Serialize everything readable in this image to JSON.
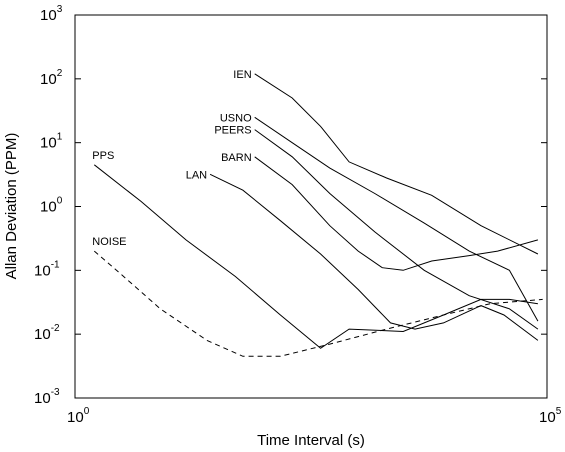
{
  "chart_data": {
    "type": "line",
    "title": "",
    "xlabel": "Time Interval (s)",
    "ylabel": "Allan Deviation (PPM)",
    "x_scale": "log",
    "y_scale": "log",
    "xlim": [
      1,
      100000
    ],
    "ylim": [
      0.001,
      1000
    ],
    "x_ticks": [
      {
        "value": 1,
        "base": "10",
        "exp": "0"
      },
      {
        "value": 100000,
        "base": "10",
        "exp": "5"
      }
    ],
    "y_ticks": [
      {
        "value": 0.001,
        "base": "10",
        "exp": "-3"
      },
      {
        "value": 0.01,
        "base": "10",
        "exp": "-2"
      },
      {
        "value": 0.1,
        "base": "10",
        "exp": "-1"
      },
      {
        "value": 1,
        "base": "10",
        "exp": "0"
      },
      {
        "value": 10,
        "base": "10",
        "exp": "1"
      },
      {
        "value": 100,
        "base": "10",
        "exp": "2"
      },
      {
        "value": 1000,
        "base": "10",
        "exp": "3"
      }
    ],
    "grid": false,
    "legend": "inline labels",
    "series": [
      {
        "name": "IEN",
        "dash": "solid",
        "points": [
          [
            80,
            120
          ],
          [
            200,
            50
          ],
          [
            400,
            18
          ],
          [
            800,
            5
          ],
          [
            2000,
            2.8
          ],
          [
            6000,
            1.5
          ],
          [
            20000,
            0.5
          ],
          [
            80000,
            0.18
          ]
        ]
      },
      {
        "name": "USNO",
        "dash": "solid",
        "points": [
          [
            80,
            25
          ],
          [
            200,
            10
          ],
          [
            500,
            4
          ],
          [
            1500,
            1.6
          ],
          [
            5000,
            0.55
          ],
          [
            15000,
            0.2
          ],
          [
            40000,
            0.1
          ],
          [
            80000,
            0.016
          ]
        ]
      },
      {
        "name": "PEERS",
        "dash": "solid",
        "points": [
          [
            80,
            16
          ],
          [
            200,
            6
          ],
          [
            500,
            1.6
          ],
          [
            1500,
            0.4
          ],
          [
            5000,
            0.1
          ],
          [
            15000,
            0.04
          ],
          [
            40000,
            0.025
          ],
          [
            80000,
            0.012
          ]
        ]
      },
      {
        "name": "BARN",
        "dash": "solid",
        "points": [
          [
            80,
            6
          ],
          [
            200,
            2.2
          ],
          [
            500,
            0.5
          ],
          [
            1000,
            0.2
          ],
          [
            1800,
            0.11
          ],
          [
            3000,
            0.1
          ],
          [
            6000,
            0.14
          ],
          [
            15000,
            0.17
          ],
          [
            30000,
            0.2
          ],
          [
            80000,
            0.3
          ]
        ]
      },
      {
        "name": "LAN",
        "dash": "solid",
        "points": [
          [
            27,
            3.2
          ],
          [
            60,
            1.8
          ],
          [
            150,
            0.6
          ],
          [
            400,
            0.18
          ],
          [
            1000,
            0.05
          ],
          [
            2200,
            0.015
          ],
          [
            4000,
            0.012
          ],
          [
            8000,
            0.015
          ],
          [
            20000,
            0.028
          ],
          [
            35000,
            0.02
          ],
          [
            80000,
            0.008
          ]
        ]
      },
      {
        "name": "PPS",
        "dash": "solid",
        "points": [
          [
            1.6,
            4.5
          ],
          [
            5,
            1.2
          ],
          [
            15,
            0.3
          ],
          [
            50,
            0.08
          ],
          [
            150,
            0.02
          ],
          [
            400,
            0.006
          ],
          [
            800,
            0.012
          ],
          [
            3000,
            0.011
          ],
          [
            8000,
            0.02
          ],
          [
            20000,
            0.035
          ],
          [
            40000,
            0.035
          ],
          [
            80000,
            0.03
          ]
        ]
      },
      {
        "name": "NOISE",
        "dash": "dashed",
        "points": [
          [
            1.6,
            0.2
          ],
          [
            3,
            0.09
          ],
          [
            8,
            0.025
          ],
          [
            25,
            0.008
          ],
          [
            60,
            0.0045
          ],
          [
            150,
            0.0045
          ],
          [
            500,
            0.007
          ],
          [
            2000,
            0.012
          ],
          [
            8000,
            0.02
          ],
          [
            25000,
            0.03
          ],
          [
            90000,
            0.035
          ]
        ]
      }
    ]
  }
}
